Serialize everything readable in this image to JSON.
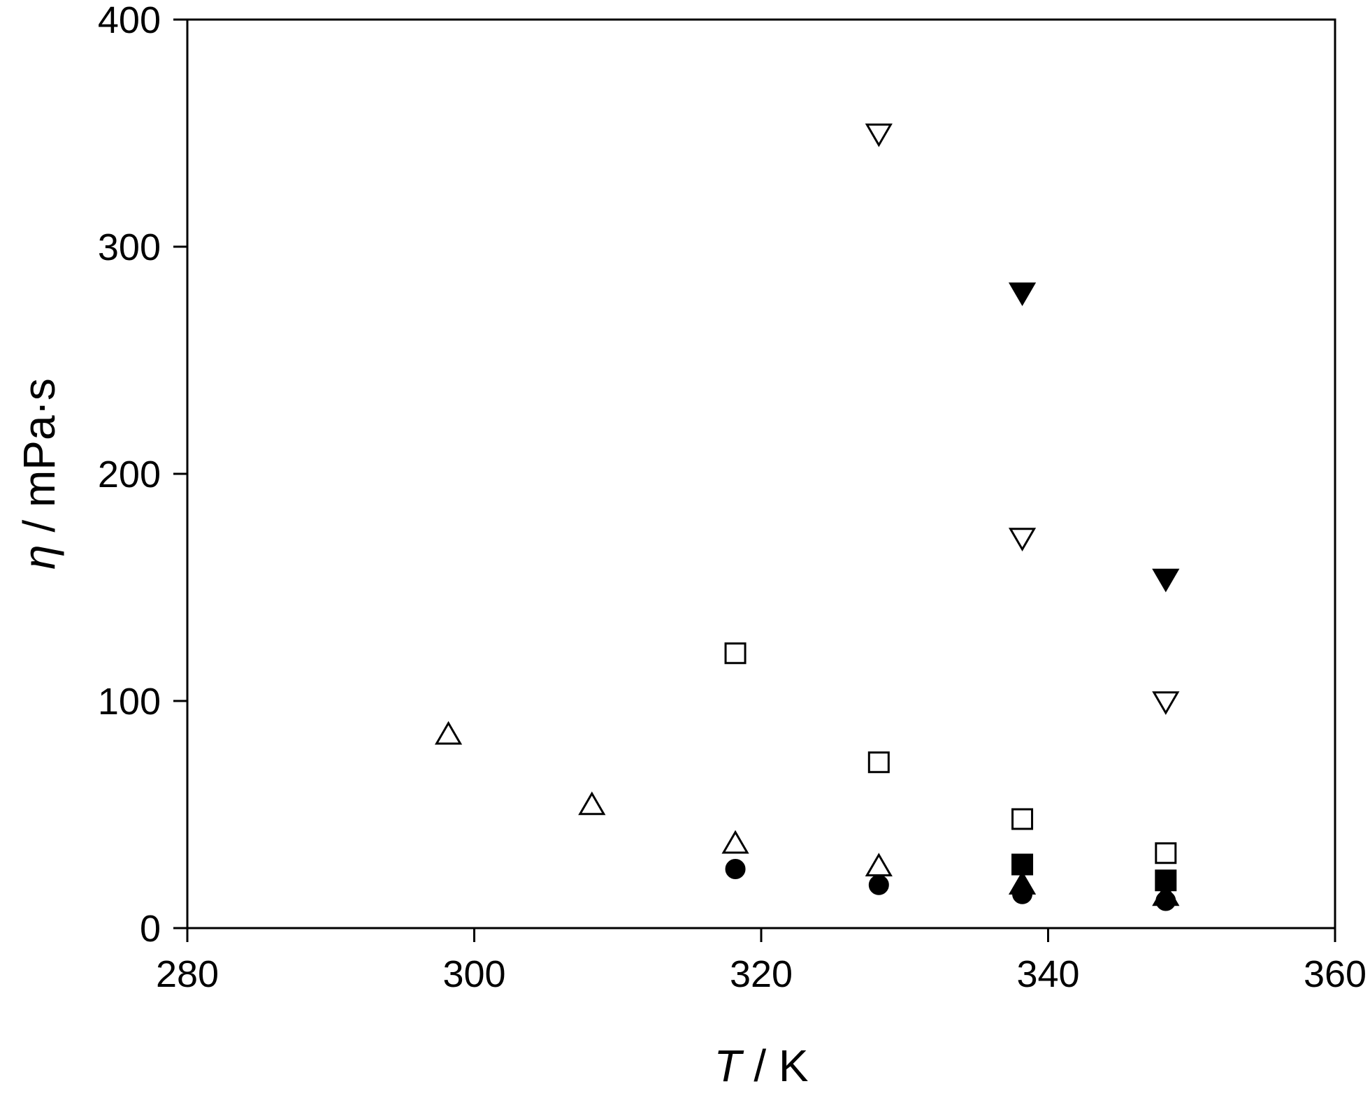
{
  "chart_data": {
    "type": "scatter",
    "xlabel": {
      "symbol": "T",
      "unit": " / K"
    },
    "ylabel": {
      "symbol": "η",
      "unit": " / mPa·s"
    },
    "xlim": [
      280,
      360
    ],
    "ylim": [
      0,
      400
    ],
    "x_ticks": [
      280,
      300,
      320,
      340,
      360
    ],
    "y_ticks": [
      0,
      100,
      200,
      300,
      400
    ],
    "x_tick_labels": [
      "280",
      "300",
      "320",
      "340",
      "360"
    ],
    "y_tick_labels": [
      "0",
      "100",
      "200",
      "300",
      "400"
    ],
    "grid": false,
    "legend": "none",
    "series": [
      {
        "marker": "triangle-down",
        "fill": "none",
        "x": [
          328.2,
          338.2,
          348.2
        ],
        "y": [
          350,
          172,
          100
        ]
      },
      {
        "marker": "triangle-down",
        "fill": "#000000",
        "x": [
          338.2,
          348.2
        ],
        "y": [
          280,
          154
        ]
      },
      {
        "marker": "square",
        "fill": "none",
        "x": [
          318.2,
          328.2,
          338.2,
          348.2
        ],
        "y": [
          121,
          73,
          48,
          33
        ]
      },
      {
        "marker": "square",
        "fill": "#000000",
        "x": [
          338.2,
          348.2
        ],
        "y": [
          28,
          21
        ]
      },
      {
        "marker": "triangle-up",
        "fill": "none",
        "x": [
          298.2,
          308.2,
          318.2,
          328.2
        ],
        "y": [
          85,
          54,
          37,
          27
        ]
      },
      {
        "marker": "triangle-up",
        "fill": "#000000",
        "x": [
          338.2,
          348.2
        ],
        "y": [
          19,
          14
        ]
      },
      {
        "marker": "circle",
        "fill": "#000000",
        "x": [
          318.2,
          328.2,
          338.2,
          348.2
        ],
        "y": [
          26,
          19,
          15,
          12
        ]
      }
    ]
  }
}
